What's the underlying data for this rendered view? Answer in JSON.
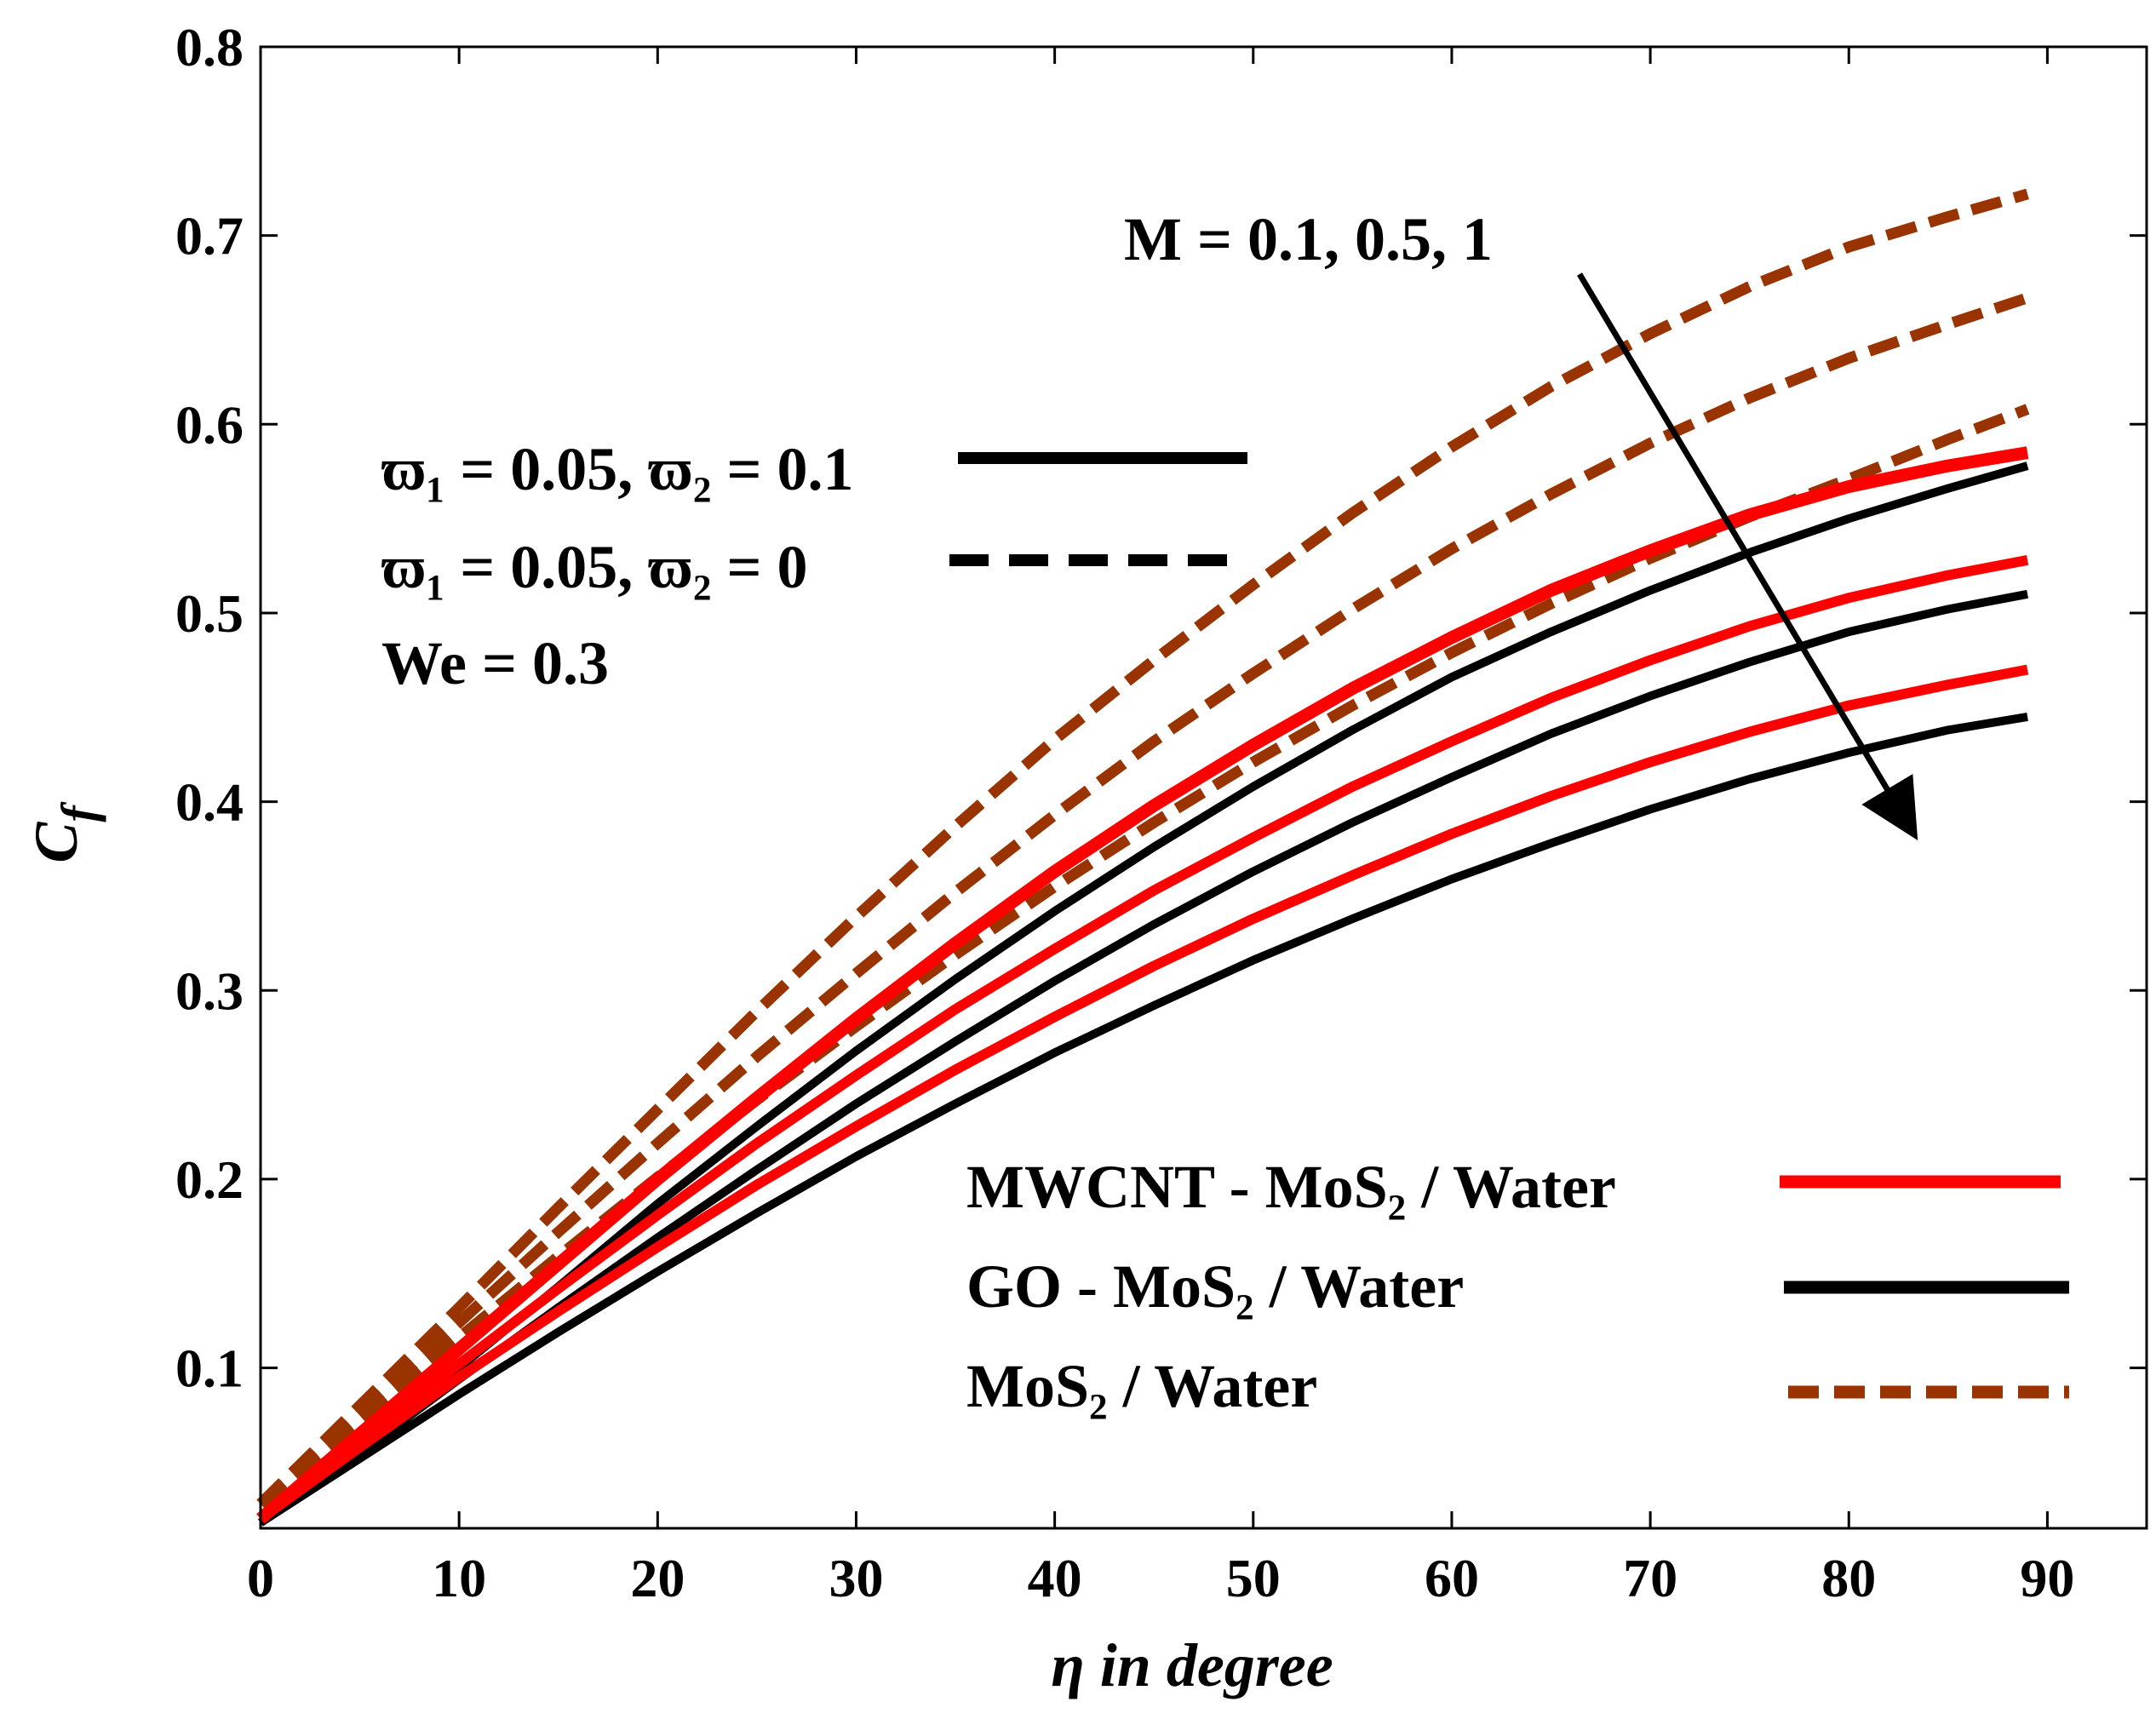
{
  "chart_data": {
    "type": "line",
    "title": "",
    "xlabel": "η in degree",
    "ylabel": "C_f",
    "xlim": [
      0,
      95
    ],
    "ylim": [
      0.015,
      0.8
    ],
    "xticks": [
      0,
      10,
      20,
      30,
      40,
      50,
      60,
      70,
      80,
      90
    ],
    "yticks": [
      0.1,
      0.2,
      0.3,
      0.4,
      0.5,
      0.6,
      0.7,
      0.8
    ],
    "x": [
      0,
      5,
      10,
      15,
      20,
      25,
      30,
      35,
      40,
      45,
      50,
      55,
      60,
      65,
      70,
      75,
      80,
      85,
      89
    ],
    "annotation": "M = 0.1, 0.5, 1",
    "params": {
      "line1": "ϖ₁ = 0.05, ϖ₂ = 0.1",
      "line2": "ϖ₁ = 0.05, ϖ₂ = 0",
      "line3": "We = 0.3"
    },
    "legend": {
      "mwcnt": "MWCNT - MoS₂ / Water",
      "go": "GO - MoS₂ / Water",
      "mos2": "MoS₂ / Water"
    },
    "colors": {
      "mwcnt": "#ff0000",
      "go": "#000000",
      "mos2": "#993300"
    },
    "series": [
      {
        "name": "MWCNT - MoS₂ / Water, M = 0.1",
        "group": "mwcnt",
        "values": [
          0.02,
          0.065,
          0.11,
          0.155,
          0.2,
          0.243,
          0.285,
          0.325,
          0.363,
          0.398,
          0.43,
          0.46,
          0.487,
          0.512,
          0.533,
          0.552,
          0.567,
          0.578,
          0.585
        ]
      },
      {
        "name": "MWCNT - MoS₂ / Water, M = 0.5",
        "group": "mwcnt",
        "values": [
          0.02,
          0.062,
          0.102,
          0.142,
          0.181,
          0.219,
          0.255,
          0.29,
          0.322,
          0.353,
          0.381,
          0.408,
          0.432,
          0.455,
          0.475,
          0.493,
          0.508,
          0.52,
          0.528
        ]
      },
      {
        "name": "MWCNT - MoS₂ / Water, M = 1",
        "group": "mwcnt",
        "values": [
          0.02,
          0.058,
          0.095,
          0.13,
          0.164,
          0.197,
          0.228,
          0.258,
          0.286,
          0.313,
          0.338,
          0.361,
          0.383,
          0.403,
          0.421,
          0.437,
          0.451,
          0.462,
          0.47
        ]
      },
      {
        "name": "GO - MoS₂ / Water, M = 0.1",
        "group": "go",
        "values": [
          0.018,
          0.058,
          0.1,
          0.143,
          0.187,
          0.228,
          0.268,
          0.306,
          0.342,
          0.376,
          0.408,
          0.438,
          0.466,
          0.49,
          0.512,
          0.532,
          0.55,
          0.566,
          0.578
        ]
      },
      {
        "name": "GO - MoS₂ / Water, M = 0.5",
        "group": "go",
        "values": [
          0.018,
          0.055,
          0.094,
          0.132,
          0.169,
          0.205,
          0.24,
          0.273,
          0.305,
          0.335,
          0.363,
          0.389,
          0.413,
          0.436,
          0.456,
          0.474,
          0.49,
          0.502,
          0.51
        ]
      },
      {
        "name": "GO - MoS₂ / Water, M = 1",
        "group": "go",
        "values": [
          0.018,
          0.052,
          0.086,
          0.119,
          0.151,
          0.182,
          0.212,
          0.24,
          0.267,
          0.292,
          0.316,
          0.338,
          0.359,
          0.378,
          0.396,
          0.412,
          0.426,
          0.438,
          0.445
        ]
      },
      {
        "name": "MoS₂ / Water, M = 0.1",
        "group": "mos2",
        "values": [
          0.028,
          0.08,
          0.132,
          0.185,
          0.237,
          0.289,
          0.339,
          0.387,
          0.433,
          0.475,
          0.515,
          0.553,
          0.588,
          0.62,
          0.648,
          0.673,
          0.694,
          0.71,
          0.722
        ]
      },
      {
        "name": "MoS₂ / Water, M = 0.5",
        "group": "mos2",
        "values": [
          0.028,
          0.076,
          0.124,
          0.172,
          0.219,
          0.265,
          0.309,
          0.352,
          0.393,
          0.432,
          0.468,
          0.502,
          0.534,
          0.563,
          0.59,
          0.614,
          0.635,
          0.653,
          0.667
        ]
      },
      {
        "name": "MoS₂ / Water, M = 1",
        "group": "mos2",
        "values": [
          0.028,
          0.072,
          0.116,
          0.159,
          0.201,
          0.242,
          0.281,
          0.319,
          0.355,
          0.389,
          0.421,
          0.451,
          0.479,
          0.505,
          0.529,
          0.551,
          0.571,
          0.592,
          0.608
        ]
      }
    ]
  }
}
